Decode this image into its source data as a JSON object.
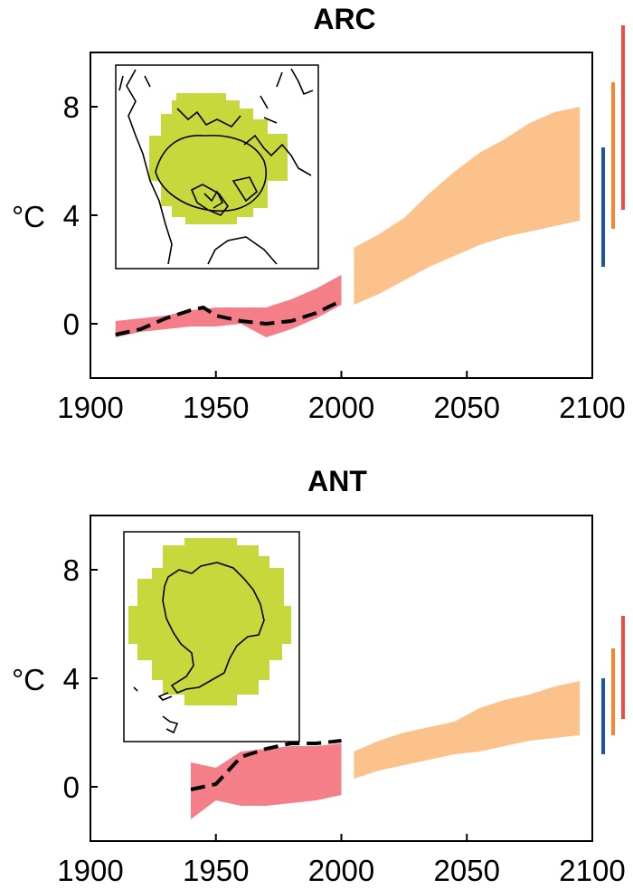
{
  "colors": {
    "observed_band": "#f57f88",
    "projected_band": "#fbc38b",
    "observed_line": "#000000",
    "inset_region": "#c7d83c",
    "bar_blue": "#1d56a6",
    "bar_orange": "#f58533",
    "bar_red": "#ec4e40"
  },
  "chart_data": [
    {
      "type": "area",
      "title": "ARC",
      "ylabel": "°C",
      "xlim": [
        1900,
        2100
      ],
      "ylim": [
        -2,
        10
      ],
      "xticks": [
        "1900",
        "1950",
        "2000",
        "2050",
        "2100"
      ],
      "yticks": [
        "0",
        "4",
        "8"
      ],
      "inset_map": "arctic-region-map",
      "series": [
        {
          "name": "observed-model-range",
          "kind": "band",
          "x": [
            1910,
            1920,
            1930,
            1940,
            1950,
            1960,
            1970,
            1980,
            1990,
            2000
          ],
          "lower": [
            -0.5,
            -0.3,
            -0.2,
            -0.1,
            -0.1,
            0,
            -0.5,
            -0.2,
            0.2,
            0.7
          ],
          "upper": [
            0.1,
            0.2,
            0.3,
            0.5,
            0.6,
            0.6,
            0.6,
            0.9,
            1.3,
            1.8
          ]
        },
        {
          "name": "projected-model-range",
          "kind": "band",
          "x": [
            2005,
            2015,
            2025,
            2035,
            2045,
            2055,
            2065,
            2075,
            2085,
            2095
          ],
          "lower": [
            0.7,
            1.1,
            1.6,
            2.1,
            2.5,
            2.9,
            3.2,
            3.4,
            3.6,
            3.8
          ],
          "upper": [
            2.8,
            3.3,
            3.9,
            4.8,
            5.6,
            6.3,
            6.8,
            7.4,
            7.8,
            8.0
          ]
        },
        {
          "name": "observations",
          "kind": "line",
          "x": [
            1910,
            1920,
            1930,
            1940,
            1945,
            1950,
            1960,
            1970,
            1980,
            1990,
            2000
          ],
          "values": [
            -0.4,
            -0.2,
            0.2,
            0.5,
            0.6,
            0.3,
            0.1,
            0.0,
            0.1,
            0.4,
            0.85
          ]
        }
      ],
      "range_bars": [
        {
          "name": "blue-range",
          "color": "#1d56a6",
          "low": 2.1,
          "high": 6.5
        },
        {
          "name": "orange-range",
          "color": "#f58533",
          "low": 3.5,
          "high": 8.9
        },
        {
          "name": "red-range",
          "color": "#ec4e40",
          "low": 4.2,
          "high": 11.0
        }
      ]
    },
    {
      "type": "area",
      "title": "ANT",
      "ylabel": "°C",
      "xlim": [
        1900,
        2100
      ],
      "ylim": [
        -2,
        10
      ],
      "xticks": [
        "1900",
        "1950",
        "2000",
        "2050",
        "2100"
      ],
      "yticks": [
        "0",
        "4",
        "8"
      ],
      "inset_map": "antarctic-region-map",
      "series": [
        {
          "name": "observed-model-range",
          "kind": "band",
          "x": [
            1940,
            1950,
            1960,
            1970,
            1980,
            1990,
            2000
          ],
          "lower": [
            -1.2,
            -0.5,
            -0.7,
            -0.7,
            -0.6,
            -0.5,
            -0.3
          ],
          "upper": [
            0.9,
            0.7,
            1.3,
            1.4,
            1.5,
            1.5,
            1.6
          ]
        },
        {
          "name": "projected-model-range",
          "kind": "band",
          "x": [
            2005,
            2015,
            2025,
            2035,
            2045,
            2055,
            2065,
            2075,
            2085,
            2095
          ],
          "lower": [
            0.3,
            0.6,
            0.8,
            1.0,
            1.2,
            1.3,
            1.5,
            1.7,
            1.8,
            1.9
          ],
          "upper": [
            1.3,
            1.7,
            2.0,
            2.2,
            2.4,
            2.9,
            3.2,
            3.4,
            3.7,
            3.9
          ]
        },
        {
          "name": "observations",
          "kind": "line",
          "x": [
            1940,
            1950,
            1960,
            1970,
            1980,
            1990,
            2000
          ],
          "values": [
            -0.1,
            0.1,
            1.1,
            1.4,
            1.6,
            1.6,
            1.7
          ]
        }
      ],
      "range_bars": [
        {
          "name": "blue-range",
          "color": "#1d56a6",
          "low": 1.2,
          "high": 4.0
        },
        {
          "name": "orange-range",
          "color": "#f58533",
          "low": 1.9,
          "high": 5.1
        },
        {
          "name": "red-range",
          "color": "#ec4e40",
          "low": 2.5,
          "high": 6.3
        }
      ]
    }
  ]
}
